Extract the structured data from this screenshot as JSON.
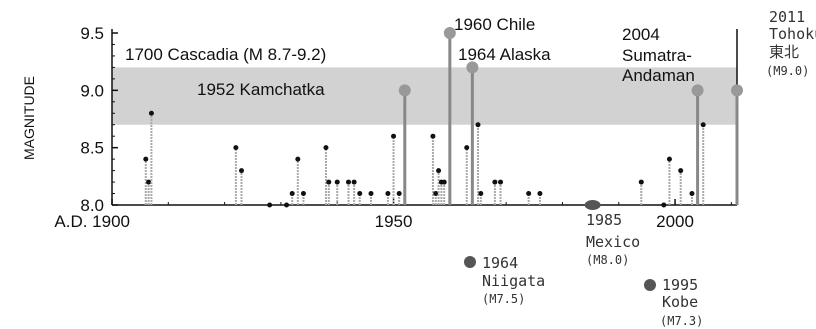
{
  "chart_data": {
    "type": "scatter",
    "title": "",
    "xlabel": "",
    "ylabel": "MAGNITUDE",
    "xlim": [
      1900,
      2011
    ],
    "ylim": [
      8.0,
      9.5
    ],
    "yticks": [
      8.0,
      8.5,
      9.0,
      9.5
    ],
    "ytick_labels": [
      "8.0",
      "8.5",
      "9.0",
      "9.5"
    ],
    "xticks": [
      1900,
      1950,
      2000
    ],
    "xtick_labels": [
      "A.D. 1900",
      "1950",
      "2000"
    ],
    "band": {
      "label": "1700 Cascadia (M 8.7-9.2)",
      "y0": 8.7,
      "y1": 9.2
    },
    "events": [
      {
        "year": 1906,
        "mag": 8.4
      },
      {
        "year": 1906.5,
        "mag": 8.2
      },
      {
        "year": 1907,
        "mag": 8.8
      },
      {
        "year": 1922,
        "mag": 8.5
      },
      {
        "year": 1923,
        "mag": 8.3
      },
      {
        "year": 1928,
        "mag": 8.0
      },
      {
        "year": 1931,
        "mag": 8.0
      },
      {
        "year": 1932,
        "mag": 8.1
      },
      {
        "year": 1933,
        "mag": 8.4
      },
      {
        "year": 1934,
        "mag": 8.1
      },
      {
        "year": 1938,
        "mag": 8.5
      },
      {
        "year": 1938.5,
        "mag": 8.2
      },
      {
        "year": 1940,
        "mag": 8.2
      },
      {
        "year": 1942,
        "mag": 8.2
      },
      {
        "year": 1943,
        "mag": 8.2
      },
      {
        "year": 1944,
        "mag": 8.1
      },
      {
        "year": 1946,
        "mag": 8.1
      },
      {
        "year": 1949,
        "mag": 8.1
      },
      {
        "year": 1950,
        "mag": 8.6
      },
      {
        "year": 1951,
        "mag": 8.1
      },
      {
        "year": 1952,
        "mag": 9.0,
        "label": "1952 Kamchatka"
      },
      {
        "year": 1957,
        "mag": 8.6
      },
      {
        "year": 1957.5,
        "mag": 8.1
      },
      {
        "year": 1958,
        "mag": 8.3
      },
      {
        "year": 1958.5,
        "mag": 8.2
      },
      {
        "year": 1959,
        "mag": 8.2
      },
      {
        "year": 1960,
        "mag": 9.5,
        "label": "1960 Chile"
      },
      {
        "year": 1963,
        "mag": 8.5
      },
      {
        "year": 1964,
        "mag": 9.2,
        "label": "1964 Alaska"
      },
      {
        "year": 1965,
        "mag": 8.7
      },
      {
        "year": 1965.5,
        "mag": 8.1
      },
      {
        "year": 1968,
        "mag": 8.2
      },
      {
        "year": 1969,
        "mag": 8.2
      },
      {
        "year": 1974,
        "mag": 8.1
      },
      {
        "year": 1976,
        "mag": 8.1
      },
      {
        "year": 1994,
        "mag": 8.2
      },
      {
        "year": 1998,
        "mag": 8.0
      },
      {
        "year": 1999,
        "mag": 8.4
      },
      {
        "year": 2001,
        "mag": 8.3
      },
      {
        "year": 2003,
        "mag": 8.1
      },
      {
        "year": 2004,
        "mag": 9.0
      },
      {
        "year": 2005,
        "mag": 8.7
      },
      {
        "year": 2011,
        "mag": 9.0
      }
    ],
    "below_events": [
      {
        "year": 1985,
        "mag": 8.0
      }
    ],
    "annotations": [
      {
        "id": "chile",
        "lines": [
          "1960 Chile"
        ]
      },
      {
        "id": "alaska",
        "lines": [
          "1964 Alaska"
        ]
      },
      {
        "id": "kamchatka",
        "lines": [
          "1952 Kamchatka"
        ]
      },
      {
        "id": "sumatra",
        "lines": [
          "2004",
          "Sumatra-",
          "Andaman"
        ]
      },
      {
        "id": "tohoku",
        "lines": [
          "2011",
          "Tohoku",
          "東北",
          "(M9.0)"
        ]
      },
      {
        "id": "mexico",
        "lines": [
          "1985",
          "Mexico",
          "(M8.0)"
        ]
      },
      {
        "id": "niigata",
        "lines": [
          "1964",
          "Niigata",
          "(M7.5)"
        ]
      },
      {
        "id": "kobe",
        "lines": [
          "1995",
          "Kobe",
          "(M7.3)"
        ]
      }
    ]
  }
}
